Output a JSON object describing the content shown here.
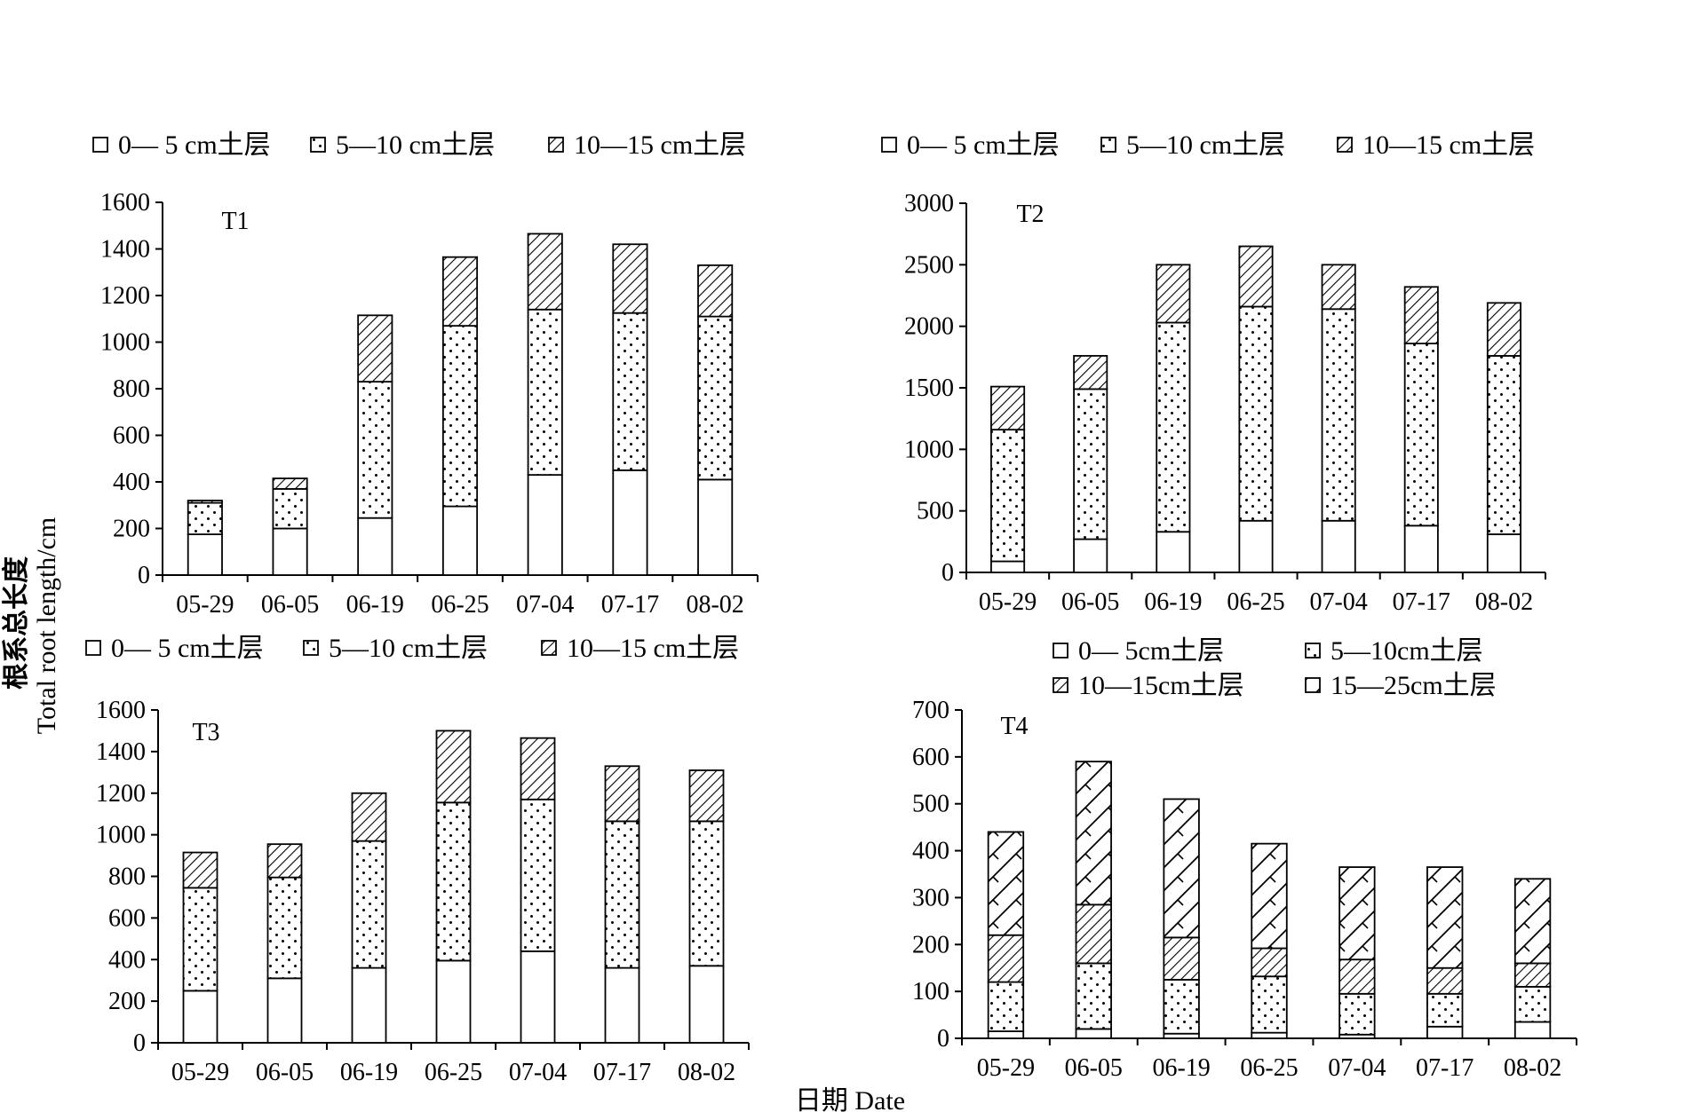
{
  "figure": {
    "ylabel_cn": "根系总长度",
    "ylabel_en": "Total root length/cm",
    "xlabel": "日期 Date"
  },
  "layer_patterns": {
    "0—5 cm": "blank",
    "5—10 cm": "dots",
    "10—15 cm": "diagonal-hatch",
    "15—25 cm": "crosshatch-diagonal"
  },
  "chart_data": [
    {
      "type": "bar",
      "stacked": true,
      "panel_label": "T1",
      "categories": [
        "05-29",
        "06-05",
        "06-19",
        "06-25",
        "07-04",
        "07-17",
        "08-02"
      ],
      "ylim": [
        0,
        1600
      ],
      "yticks": [
        0,
        200,
        400,
        600,
        800,
        1000,
        1200,
        1400,
        1600
      ],
      "legend": [
        "0— 5 cm土层",
        "5—10 cm土层",
        "10—15 cm土层"
      ],
      "series": [
        {
          "name": "0— 5 cm土层",
          "pattern": "blank",
          "values": [
            175,
            200,
            245,
            295,
            430,
            450,
            410
          ]
        },
        {
          "name": "5—10 cm土层",
          "pattern": "dots",
          "values": [
            135,
            170,
            585,
            775,
            710,
            675,
            700
          ]
        },
        {
          "name": "10—15 cm土层",
          "pattern": "diagonal-hatch",
          "values": [
            10,
            45,
            285,
            295,
            325,
            295,
            220
          ]
        }
      ]
    },
    {
      "type": "bar",
      "stacked": true,
      "panel_label": "T2",
      "categories": [
        "05-29",
        "06-05",
        "06-19",
        "06-25",
        "07-04",
        "07-17",
        "08-02"
      ],
      "ylim": [
        0,
        3000
      ],
      "yticks": [
        0,
        500,
        1000,
        1500,
        2000,
        2500,
        3000
      ],
      "legend": [
        "0— 5 cm土层",
        "5—10 cm土层",
        "10—15 cm土层"
      ],
      "series": [
        {
          "name": "0— 5 cm土层",
          "pattern": "blank",
          "values": [
            90,
            270,
            330,
            420,
            420,
            380,
            310
          ]
        },
        {
          "name": "5—10 cm土层",
          "pattern": "dots",
          "values": [
            1070,
            1220,
            1700,
            1740,
            1720,
            1480,
            1450
          ]
        },
        {
          "name": "10—15 cm土层",
          "pattern": "diagonal-hatch",
          "values": [
            350,
            270,
            470,
            490,
            360,
            460,
            430
          ]
        }
      ]
    },
    {
      "type": "bar",
      "stacked": true,
      "panel_label": "T3",
      "categories": [
        "05-29",
        "06-05",
        "06-19",
        "06-25",
        "07-04",
        "07-17",
        "08-02"
      ],
      "ylim": [
        0,
        1600
      ],
      "yticks": [
        0,
        200,
        400,
        600,
        800,
        1000,
        1200,
        1400,
        1600
      ],
      "legend": [
        "0— 5 cm土层",
        "5—10 cm土层",
        "10—15 cm土层"
      ],
      "series": [
        {
          "name": "0— 5 cm土层",
          "pattern": "blank",
          "values": [
            250,
            310,
            360,
            395,
            440,
            360,
            370
          ]
        },
        {
          "name": "5—10 cm土层",
          "pattern": "dots",
          "values": [
            495,
            485,
            610,
            760,
            730,
            705,
            695
          ]
        },
        {
          "name": "10—15 cm土层",
          "pattern": "diagonal-hatch",
          "values": [
            170,
            160,
            230,
            345,
            295,
            265,
            245
          ]
        }
      ]
    },
    {
      "type": "bar",
      "stacked": true,
      "panel_label": "T4",
      "categories": [
        "05-29",
        "06-05",
        "06-19",
        "06-25",
        "07-04",
        "07-17",
        "08-02"
      ],
      "ylim": [
        0,
        700
      ],
      "yticks": [
        0,
        100,
        200,
        300,
        400,
        500,
        600,
        700
      ],
      "legend": [
        "0— 5cm土层",
        "5—10cm土层",
        "10—15cm土层",
        "15—25cm土层"
      ],
      "series": [
        {
          "name": "0— 5cm土层",
          "pattern": "blank",
          "values": [
            15,
            20,
            10,
            12,
            8,
            25,
            35
          ]
        },
        {
          "name": "5—10cm土层",
          "pattern": "dots",
          "values": [
            105,
            140,
            115,
            120,
            87,
            70,
            75
          ]
        },
        {
          "name": "10—15cm土层",
          "pattern": "diagonal-hatch",
          "values": [
            100,
            125,
            90,
            60,
            73,
            55,
            50
          ]
        },
        {
          "name": "15—25cm土层",
          "pattern": "crosshatch-diagonal",
          "values": [
            220,
            305,
            295,
            223,
            197,
            215,
            180
          ]
        }
      ]
    }
  ]
}
